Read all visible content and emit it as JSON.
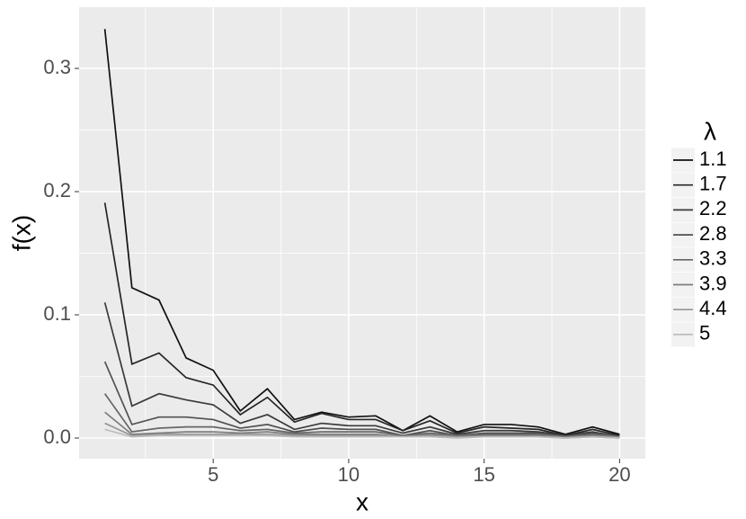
{
  "chart_data": {
    "type": "line",
    "xlabel": "x",
    "ylabel": "f(x)",
    "legend_title": "λ",
    "legend_position": "right",
    "grid": true,
    "x": [
      1,
      2,
      3,
      4,
      5,
      6,
      7,
      8,
      9,
      10,
      11,
      12,
      13,
      14,
      15,
      16,
      17,
      18,
      19,
      20
    ],
    "xlim": [
      0.05,
      20.95
    ],
    "xticks": [
      5,
      10,
      15,
      20
    ],
    "xminor": [
      2.5,
      7.5,
      12.5,
      17.5
    ],
    "ylim": [
      -0.0168,
      0.3497
    ],
    "yticks": [
      {
        "value": 0,
        "label": "0.0"
      },
      0.1,
      0.2,
      0.3
    ],
    "yminor": [
      0.05,
      0.15,
      0.25
    ],
    "series": [
      {
        "name": "1.1",
        "color": "#111111",
        "values": [
          0.332,
          0.122,
          0.112,
          0.065,
          0.055,
          0.022,
          0.04,
          0.015,
          0.021,
          0.017,
          0.018,
          0.006,
          0.018,
          0.005,
          0.011,
          0.011,
          0.009,
          0.003,
          0.009,
          0.003
        ]
      },
      {
        "name": "1.7",
        "color": "#262626",
        "values": [
          0.191,
          0.06,
          0.069,
          0.049,
          0.043,
          0.019,
          0.033,
          0.013,
          0.02,
          0.015,
          0.015,
          0.006,
          0.014,
          0.004,
          0.009,
          0.008,
          0.007,
          0.002,
          0.007,
          0.002
        ]
      },
      {
        "name": "2.2",
        "color": "#3a3a3a",
        "values": [
          0.11,
          0.026,
          0.036,
          0.031,
          0.027,
          0.012,
          0.019,
          0.007,
          0.012,
          0.01,
          0.01,
          0.004,
          0.009,
          0.003,
          0.006,
          0.006,
          0.005,
          0.002,
          0.005,
          0.001
        ]
      },
      {
        "name": "2.8",
        "color": "#505050",
        "values": [
          0.062,
          0.011,
          0.017,
          0.017,
          0.015,
          0.008,
          0.011,
          0.005,
          0.008,
          0.007,
          0.007,
          0.002,
          0.006,
          0.002,
          0.004,
          0.004,
          0.004,
          0.001,
          0.004,
          0.001
        ]
      },
      {
        "name": "3.3",
        "color": "#666666",
        "values": [
          0.036,
          0.005,
          0.008,
          0.009,
          0.009,
          0.006,
          0.007,
          0.004,
          0.005,
          0.005,
          0.005,
          0.002,
          0.004,
          0.002,
          0.003,
          0.003,
          0.003,
          0.001,
          0.003,
          0.001
        ]
      },
      {
        "name": "3.9",
        "color": "#7d7d7d",
        "values": [
          0.021,
          0.003,
          0.004,
          0.005,
          0.005,
          0.004,
          0.005,
          0.003,
          0.003,
          0.003,
          0.003,
          0.001,
          0.003,
          0.001,
          0.002,
          0.002,
          0.002,
          0.001,
          0.002,
          0.001
        ]
      },
      {
        "name": "4.4",
        "color": "#969696",
        "values": [
          0.012,
          0.002,
          0.003,
          0.003,
          0.003,
          0.003,
          0.003,
          0.002,
          0.002,
          0.002,
          0.002,
          0.001,
          0.002,
          0.001,
          0.001,
          0.001,
          0.001,
          0.0,
          0.001,
          0.0
        ]
      },
      {
        "name": "5",
        "color": "#bdbdbd",
        "values": [
          0.007,
          0.001,
          0.002,
          0.002,
          0.002,
          0.002,
          0.002,
          0.001,
          0.001,
          0.001,
          0.001,
          0.001,
          0.001,
          0.0,
          0.001,
          0.001,
          0.001,
          0.0,
          0.001,
          0.0
        ]
      }
    ]
  }
}
